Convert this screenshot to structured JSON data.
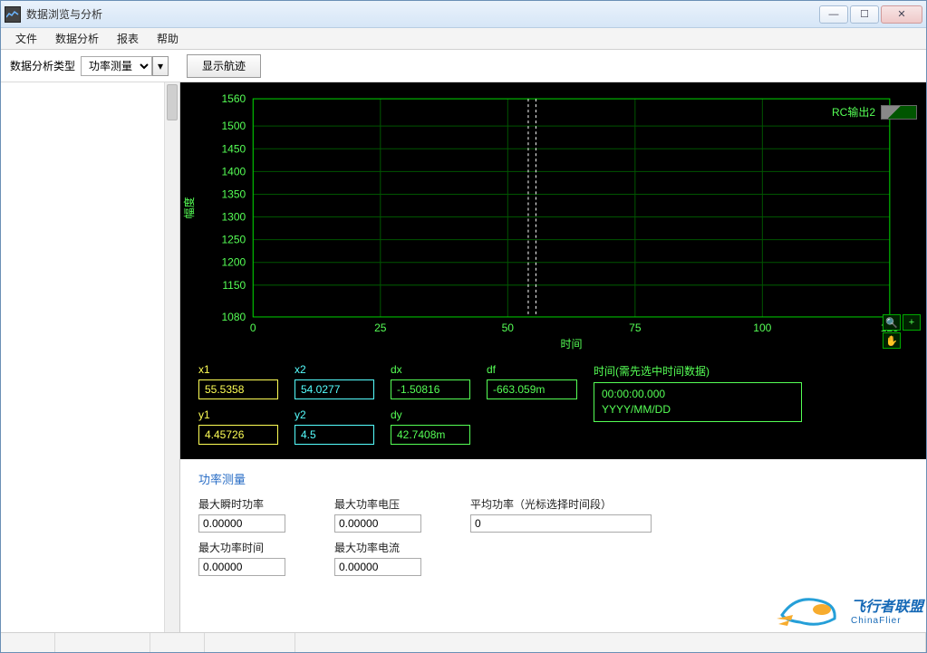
{
  "window": {
    "title": "数据浏览与分析"
  },
  "menu": {
    "file": "文件",
    "analysis": "数据分析",
    "report": "报表",
    "help": "帮助"
  },
  "toolbar": {
    "type_label": "数据分析类型",
    "type_value": "功率测量",
    "track_button": "显示航迹"
  },
  "chart": {
    "x_label": "时间",
    "y_label": "幅度",
    "legend_label": "RC输出2",
    "xlim": [
      0,
      125
    ],
    "ylim": [
      1080,
      1560
    ],
    "xticks": [
      0,
      25,
      50,
      75,
      100,
      125
    ],
    "yticks": [
      1080,
      1150,
      1200,
      1250,
      1300,
      1350,
      1400,
      1450,
      1500,
      1560
    ],
    "cursor_positions": [
      55.5358,
      54.0277
    ],
    "background": "#000000",
    "grid_color": "#005500",
    "axis_color": "#00cc00",
    "text_color": "#55ff55",
    "cursor_color": "#ffffff"
  },
  "cursors": {
    "x1": {
      "label": "x1",
      "value": "55.5358"
    },
    "x2": {
      "label": "x2",
      "value": "54.0277"
    },
    "dx": {
      "label": "dx",
      "value": "-1.50816"
    },
    "df": {
      "label": "df",
      "value": "-663.059m"
    },
    "y1": {
      "label": "y1",
      "value": "4.45726"
    },
    "y2": {
      "label": "y2",
      "value": "4.5"
    },
    "dy": {
      "label": "dy",
      "value": "42.7408m"
    },
    "time_label": "时间(需先选中时间数据)",
    "time_value": "00:00:00.000",
    "date_format": "YYYY/MM/DD"
  },
  "measure": {
    "title": "功率测量",
    "max_inst_power": {
      "label": "最大瞬时功率",
      "value": "0.00000"
    },
    "max_power_voltage": {
      "label": "最大功率电压",
      "value": "0.00000"
    },
    "avg_power": {
      "label": "平均功率（光标选择时间段）",
      "value": "0"
    },
    "max_power_time": {
      "label": "最大功率时间",
      "value": "0.00000"
    },
    "max_power_current": {
      "label": "最大功率电流",
      "value": "0.00000"
    }
  },
  "watermark": {
    "brand": "飞行者联盟",
    "sub": "ChinaFlier"
  },
  "colors": {
    "yellow": "#ffff55",
    "cyan": "#55ffff",
    "green": "#55ff55"
  }
}
